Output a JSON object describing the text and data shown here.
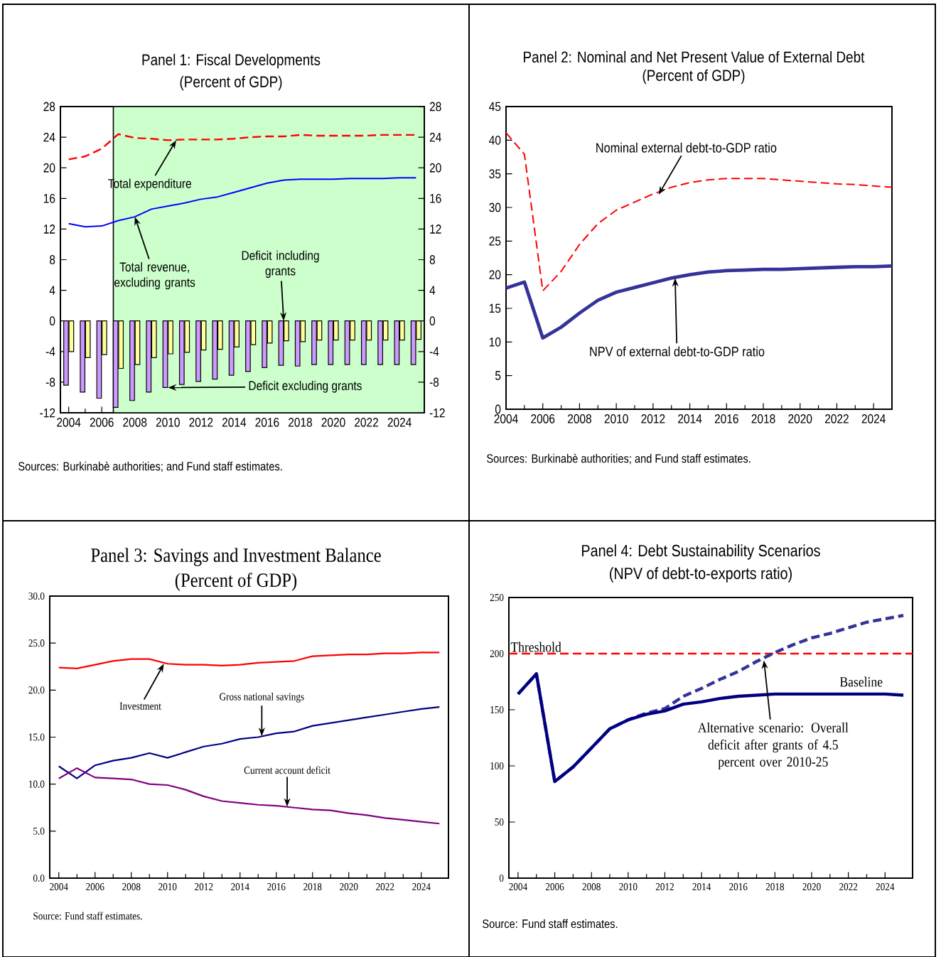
{
  "chart_data": [
    {
      "type": "bar",
      "title": "Panel 1: Fiscal Developments",
      "subtitle": "(Percent of GDP)",
      "x": [
        2004,
        2005,
        2006,
        2007,
        2008,
        2009,
        2010,
        2011,
        2012,
        2013,
        2014,
        2015,
        2016,
        2017,
        2018,
        2019,
        2020,
        2021,
        2022,
        2023,
        2024,
        2025
      ],
      "xlim": [
        2003.5,
        2025.5
      ],
      "xticks": [
        2004,
        2006,
        2008,
        2010,
        2012,
        2014,
        2016,
        2018,
        2020,
        2022,
        2024
      ],
      "ylim": [
        -12,
        28
      ],
      "yticks": [
        -12,
        -8,
        -4,
        0,
        4,
        8,
        12,
        16,
        20,
        24,
        28
      ],
      "y2lim": [
        -12,
        28
      ],
      "y2ticks": [
        -12,
        -8,
        -4,
        0,
        4,
        8,
        12,
        16,
        20,
        24,
        28
      ],
      "bands": [
        {
          "axis": "x",
          "from": 2006.7,
          "to": 2025.5,
          "color": "#ccffcc"
        }
      ],
      "series": [
        {
          "color": "#cc99ff",
          "values": [
            -8.4,
            -9.3,
            -10.1,
            -11.3,
            -10.4,
            -9.3,
            -8.7,
            -8.3,
            -7.9,
            -7.6,
            -7.1,
            -6.6,
            -6.1,
            -5.8,
            -5.9,
            -5.7,
            -5.7,
            -5.7,
            -5.7,
            -5.7,
            -5.7,
            -5.7
          ]
        },
        {
          "color": "#ffff99",
          "values": [
            -4.0,
            -4.8,
            -4.4,
            -6.2,
            -5.7,
            -4.8,
            -4.3,
            -4.1,
            -3.8,
            -3.7,
            -3.4,
            -3.1,
            -2.9,
            -2.6,
            -2.7,
            -2.5,
            -2.5,
            -2.5,
            -2.5,
            -2.5,
            -2.5,
            -2.4
          ]
        },
        {
          "type": "line",
          "color": "#ff0000",
          "line_style": "dashed",
          "values": [
            21.1,
            21.5,
            22.5,
            24.4,
            23.9,
            23.8,
            23.6,
            23.7,
            23.7,
            23.7,
            23.8,
            24.0,
            24.1,
            24.1,
            24.3,
            24.2,
            24.2,
            24.2,
            24.2,
            24.3,
            24.3,
            24.3
          ]
        },
        {
          "type": "line",
          "color": "#0000ff",
          "values": [
            12.7,
            12.3,
            12.4,
            13.1,
            13.6,
            14.6,
            15.0,
            15.4,
            15.9,
            16.2,
            16.8,
            17.4,
            18.0,
            18.4,
            18.5,
            18.5,
            18.5,
            18.6,
            18.6,
            18.6,
            18.7,
            18.7
          ]
        }
      ],
      "annotations": [
        {
          "text": "Total expenditure",
          "x": 2010.5,
          "y": 23.6
        },
        {
          "text": "Total revenue, excluding grants",
          "x": 2008,
          "y": 13.6
        },
        {
          "text": "Deficit including grants",
          "x": 2017,
          "y": 0
        },
        {
          "text": "Deficit excluding grants",
          "x": 2010,
          "y": -8.7
        },
        "Sources: Burkinabè authorities; and Fund staff estimates."
      ]
    },
    {
      "type": "line",
      "title": "Panel 2: Nominal and Net Present Value of External Debt",
      "subtitle": "(Percent of GDP)",
      "x": [
        2004,
        2005,
        2006,
        2007,
        2008,
        2009,
        2010,
        2011,
        2012,
        2013,
        2014,
        2015,
        2016,
        2017,
        2018,
        2019,
        2020,
        2021,
        2022,
        2023,
        2024,
        2025
      ],
      "xlim": [
        2004,
        2025
      ],
      "xticks": [
        2004,
        2006,
        2008,
        2010,
        2012,
        2014,
        2016,
        2018,
        2020,
        2022,
        2024
      ],
      "ylim": [
        0,
        45
      ],
      "yticks": [
        0,
        5,
        10,
        15,
        20,
        25,
        30,
        35,
        40,
        45
      ],
      "series": [
        {
          "color": "#ff0000",
          "line_style": "dashed",
          "values": [
            41.1,
            37.9,
            17.6,
            20.5,
            24.5,
            27.6,
            29.6,
            30.8,
            32.0,
            33.0,
            33.7,
            34.1,
            34.3,
            34.3,
            34.3,
            34.1,
            33.9,
            33.7,
            33.5,
            33.4,
            33.2,
            33.0
          ]
        },
        {
          "color": "#333399",
          "values": [
            18.0,
            18.9,
            10.6,
            12.2,
            14.3,
            16.2,
            17.4,
            18.1,
            18.8,
            19.5,
            20.0,
            20.4,
            20.6,
            20.7,
            20.8,
            20.8,
            20.9,
            21.0,
            21.1,
            21.2,
            21.2,
            21.3
          ]
        }
      ],
      "annotations": [
        {
          "text": "Nominal external debt-to-GDP ratio",
          "x": 2012.3,
          "y": 31.9
        },
        {
          "text": "NPV of external debt-to-GDP ratio",
          "x": 2013.2,
          "y": 19.5
        },
        "Sources: Burkinabè authorities; and Fund staff estimates."
      ]
    },
    {
      "type": "line",
      "title": "Panel 3: Savings and Investment Balance",
      "subtitle": "(Percent of GDP)",
      "x": [
        2004,
        2005,
        2006,
        2007,
        2008,
        2009,
        2010,
        2011,
        2012,
        2013,
        2014,
        2015,
        2016,
        2017,
        2018,
        2019,
        2020,
        2021,
        2022,
        2023,
        2024,
        2025
      ],
      "xlim": [
        2003.5,
        2025.5
      ],
      "xticks": [
        2004,
        2006,
        2008,
        2010,
        2012,
        2014,
        2016,
        2018,
        2020,
        2022,
        2024
      ],
      "ylim": [
        0,
        30
      ],
      "yticks": [
        {
          "value": 0,
          "label": "0.0"
        },
        {
          "value": 5,
          "label": "5.0"
        },
        {
          "value": 10,
          "label": "10.0"
        },
        {
          "value": 15,
          "label": "15.0"
        },
        {
          "value": 20,
          "label": "20.0"
        },
        {
          "value": 25,
          "label": "25.0"
        },
        {
          "value": 30,
          "label": "30.0"
        }
      ],
      "series": [
        {
          "color": "#ff0000",
          "values": [
            22.4,
            22.3,
            22.7,
            23.1,
            23.3,
            23.3,
            22.8,
            22.7,
            22.7,
            22.6,
            22.7,
            22.9,
            23.0,
            23.1,
            23.6,
            23.7,
            23.8,
            23.8,
            23.9,
            23.9,
            24.0,
            24.0
          ]
        },
        {
          "color": "#000080",
          "values": [
            11.9,
            10.6,
            12.0,
            12.5,
            12.8,
            13.3,
            12.8,
            13.4,
            14.0,
            14.3,
            14.8,
            15.0,
            15.4,
            15.6,
            16.2,
            16.5,
            16.8,
            17.1,
            17.4,
            17.7,
            18.0,
            18.2
          ]
        },
        {
          "color": "#800080",
          "values": [
            10.6,
            11.7,
            10.7,
            10.6,
            10.5,
            10.0,
            9.9,
            9.4,
            8.7,
            8.2,
            8.0,
            7.8,
            7.7,
            7.5,
            7.3,
            7.2,
            6.9,
            6.7,
            6.4,
            6.2,
            6.0,
            5.8
          ]
        }
      ],
      "annotations": [
        {
          "text": "Investment",
          "x": 2009.8,
          "y": 22.8
        },
        {
          "text": "Gross national savings",
          "x": 2015.2,
          "y": 15.1
        },
        {
          "text": "Current account deficit",
          "x": 2016.6,
          "y": 7.6
        },
        "Source: Fund staff estimates."
      ]
    },
    {
      "type": "line",
      "title": "Panel 4: Debt Sustainability Scenarios",
      "subtitle": "(NPV of debt-to-exports ratio)",
      "x": [
        2004,
        2005,
        2006,
        2007,
        2008,
        2009,
        2010,
        2011,
        2012,
        2013,
        2014,
        2015,
        2016,
        2017,
        2018,
        2019,
        2020,
        2021,
        2022,
        2023,
        2024,
        2025
      ],
      "xlim": [
        2003.5,
        2025.5
      ],
      "xticks": [
        2004,
        2006,
        2008,
        2010,
        2012,
        2014,
        2016,
        2018,
        2020,
        2022,
        2024
      ],
      "ylim": [
        0,
        250
      ],
      "yticks": [
        0,
        50,
        100,
        150,
        200,
        250
      ],
      "ref_lines": [
        {
          "axis": "y",
          "value": 200,
          "label": "Threshold",
          "color": "#ff0000",
          "line_style": "dashed"
        }
      ],
      "series": [
        {
          "color": "#333399",
          "line_style": "dashed",
          "values": [
            164,
            182,
            86,
            99,
            116,
            133,
            141,
            147,
            151,
            162,
            169,
            177,
            184,
            193,
            201,
            208,
            214,
            218,
            223,
            228,
            231,
            234
          ]
        },
        {
          "name": "Baseline",
          "color": "#000080",
          "values": [
            164,
            182,
            86,
            99,
            116,
            133,
            141,
            146,
            149,
            155,
            157,
            160,
            162,
            163,
            164,
            164,
            164,
            164,
            164,
            164,
            164,
            163
          ]
        }
      ],
      "annotations": [
        {
          "text": "Alternative scenario: Overall deficit after grants of 4.5 percent over 2010-25",
          "x": 2017.4,
          "y": 194
        },
        "Source: Fund staff estimates."
      ]
    }
  ]
}
